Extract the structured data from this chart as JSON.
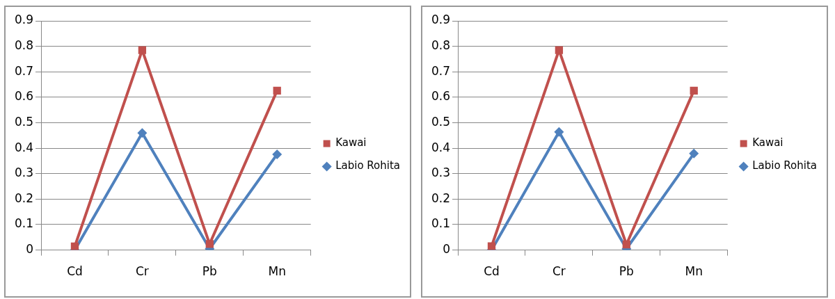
{
  "chart_data": [
    {
      "type": "line",
      "categories": [
        "Cd",
        "Cr",
        "Pb",
        "Mn"
      ],
      "series": [
        {
          "name": "Kawai",
          "color": "#c0504d",
          "marker": "square",
          "values": [
            0.014,
            0.785,
            0.024,
            0.626
          ]
        },
        {
          "name": "Labio Rohita",
          "color": "#4f81bd",
          "marker": "diamond",
          "values": [
            0.0,
            0.46,
            0.005,
            0.376
          ]
        }
      ],
      "ylim": [
        0,
        0.9
      ],
      "yticks": [
        0,
        0.1,
        0.2,
        0.3,
        0.4,
        0.5,
        0.6,
        0.7,
        0.8,
        0.9
      ],
      "grid": "y",
      "legend": "right"
    },
    {
      "type": "line",
      "categories": [
        "Cd",
        "Cr",
        "Pb",
        "Mn"
      ],
      "series": [
        {
          "name": "Kawai",
          "color": "#c0504d",
          "marker": "square",
          "values": [
            0.015,
            0.785,
            0.022,
            0.626
          ]
        },
        {
          "name": "Labio Rohita",
          "color": "#4f81bd",
          "marker": "diamond",
          "values": [
            0.0,
            0.464,
            0.005,
            0.379
          ]
        }
      ],
      "ylim": [
        0,
        0.9
      ],
      "yticks": [
        0,
        0.1,
        0.2,
        0.3,
        0.4,
        0.5,
        0.6,
        0.7,
        0.8,
        0.9
      ],
      "grid": "y",
      "legend": "right"
    }
  ]
}
